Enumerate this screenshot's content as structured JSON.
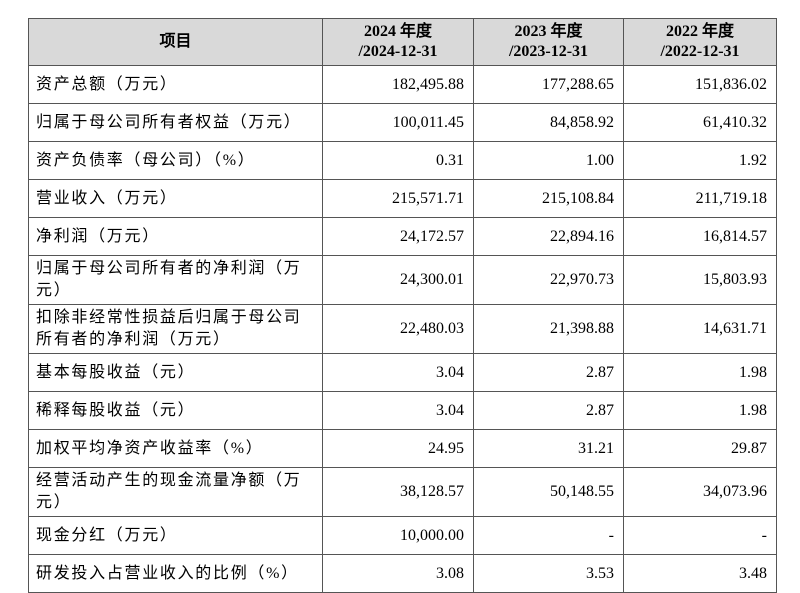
{
  "table": {
    "header": [
      {
        "text": "项目"
      },
      {
        "year": "2024 年度",
        "date": "/2024-12-31"
      },
      {
        "year": "2023 年度",
        "date": "/2023-12-31"
      },
      {
        "year": "2022 年度",
        "date": "/2022-12-31"
      }
    ],
    "rows": [
      [
        "资产总额（万元）",
        "182,495.88",
        "177,288.65",
        "151,836.02"
      ],
      [
        "归属于母公司所有者权益（万元）",
        "100,011.45",
        "84,858.92",
        "61,410.32"
      ],
      [
        "资产负债率（母公司）（%）",
        "0.31",
        "1.00",
        "1.92"
      ],
      [
        "营业收入（万元）",
        "215,571.71",
        "215,108.84",
        "211,719.18"
      ],
      [
        "净利润（万元）",
        "24,172.57",
        "22,894.16",
        "16,814.57"
      ],
      [
        "归属于母公司所有者的净利润（万元）",
        "24,300.01",
        "22,970.73",
        "15,803.93"
      ],
      [
        "扣除非经常性损益后归属于母公司所有者的净利润（万元）",
        "22,480.03",
        "21,398.88",
        "14,631.71"
      ],
      [
        "基本每股收益（元）",
        "3.04",
        "2.87",
        "1.98"
      ],
      [
        "稀释每股收益（元）",
        "3.04",
        "2.87",
        "1.98"
      ],
      [
        "加权平均净资产收益率（%）",
        "24.95",
        "31.21",
        "29.87"
      ],
      [
        "经营活动产生的现金流量净额（万元）",
        "38,128.57",
        "50,148.55",
        "34,073.96"
      ],
      [
        "现金分红（万元）",
        "10,000.00",
        "-",
        "-"
      ],
      [
        "研发投入占营业收入的比例（%）",
        "3.08",
        "3.53",
        "3.48"
      ]
    ]
  }
}
